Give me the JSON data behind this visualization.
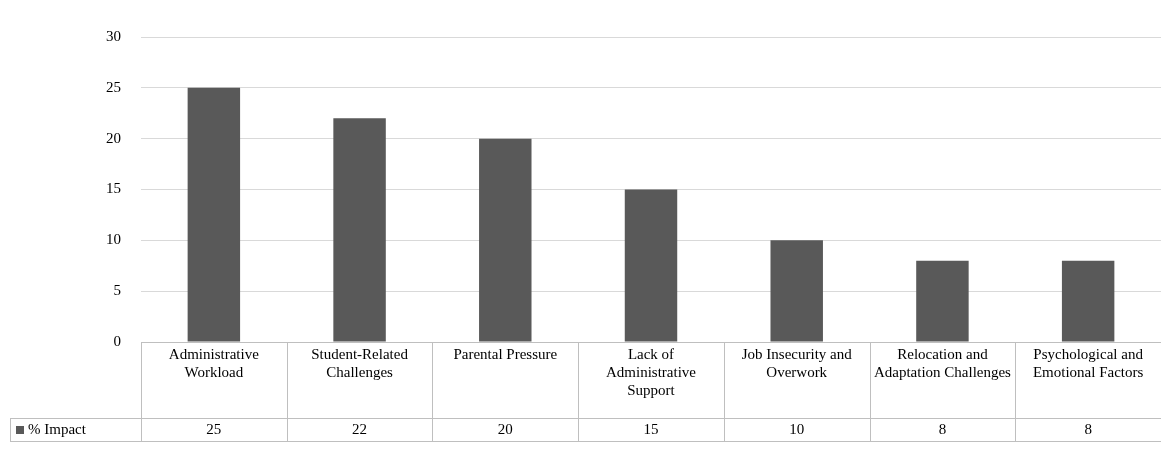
{
  "chart_data": {
    "type": "bar",
    "categories": [
      "Administrative Workload",
      "Student-Related Challenges",
      "Parental Pressure",
      "Lack of Administrative Support",
      "Job Insecurity and Overwork",
      "Relocation and Adaptation Challenges",
      "Psychological and Emotional Factors"
    ],
    "series": [
      {
        "name": "% Impact",
        "color": "#595959",
        "values": [
          25,
          22,
          20,
          15,
          10,
          8,
          8
        ]
      }
    ],
    "ylim": [
      0,
      30
    ],
    "yticks": [
      0,
      5,
      10,
      15,
      20,
      25,
      30
    ],
    "grid": "y",
    "legend": "bottom left",
    "data_labels": true
  }
}
